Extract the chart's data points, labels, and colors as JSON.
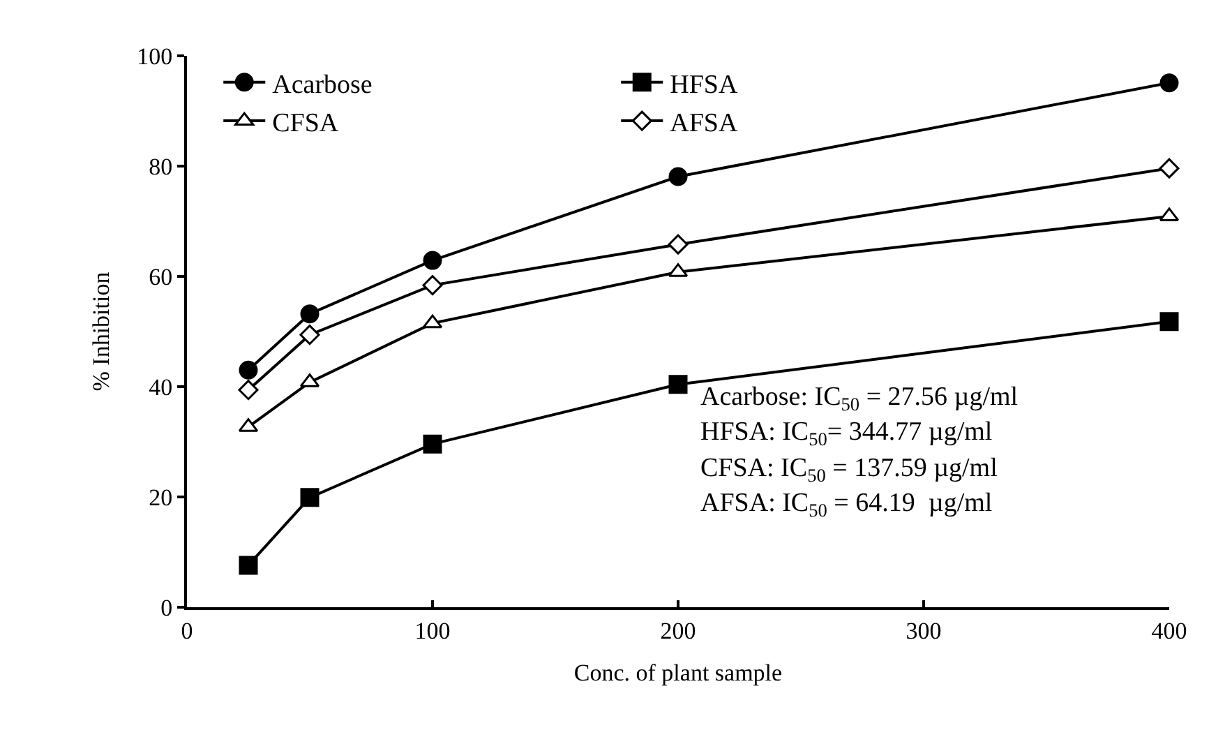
{
  "chart_data": {
    "type": "line",
    "xlabel": "Conc. of plant sample",
    "ylabel": "% Inhibition",
    "x": [
      25,
      50,
      100,
      200,
      400
    ],
    "series": [
      {
        "name": "Acarbose",
        "color": "#000000",
        "marker": "circle",
        "values": [
          43,
          53.2,
          62.9,
          78.1,
          95.1
        ]
      },
      {
        "name": "HFSA",
        "color": "#000000",
        "marker": "square",
        "values": [
          7.6,
          19.9,
          29.6,
          40.4,
          51.8
        ]
      },
      {
        "name": "CFSA",
        "color": "#000000",
        "marker": "triangle",
        "values": [
          32.7,
          40.8,
          51.5,
          60.8,
          70.9
        ]
      },
      {
        "name": "AFSA",
        "color": "#000000",
        "marker": "diamond",
        "values": [
          39.4,
          49.4,
          58.4,
          65.8,
          79.6
        ]
      }
    ],
    "xlim": [
      0,
      400
    ],
    "xticks": [
      0,
      100,
      200,
      300,
      400
    ],
    "ylim": [
      0,
      100
    ],
    "yticks": [
      0,
      20,
      40,
      60,
      80,
      100
    ],
    "legend": "top left",
    "line_style": "solid",
    "annotations": [
      "Acarbose: IC$_{50}$ = 27.56 µg/ml",
      "HFSA: IC$_{50}$= 344.77 µg/ml",
      "CFSA: IC$_{50}$ = 137.59 µg/ml",
      "AFSA: IC$_{50}$ = 64.19  µg/ml"
    ]
  }
}
